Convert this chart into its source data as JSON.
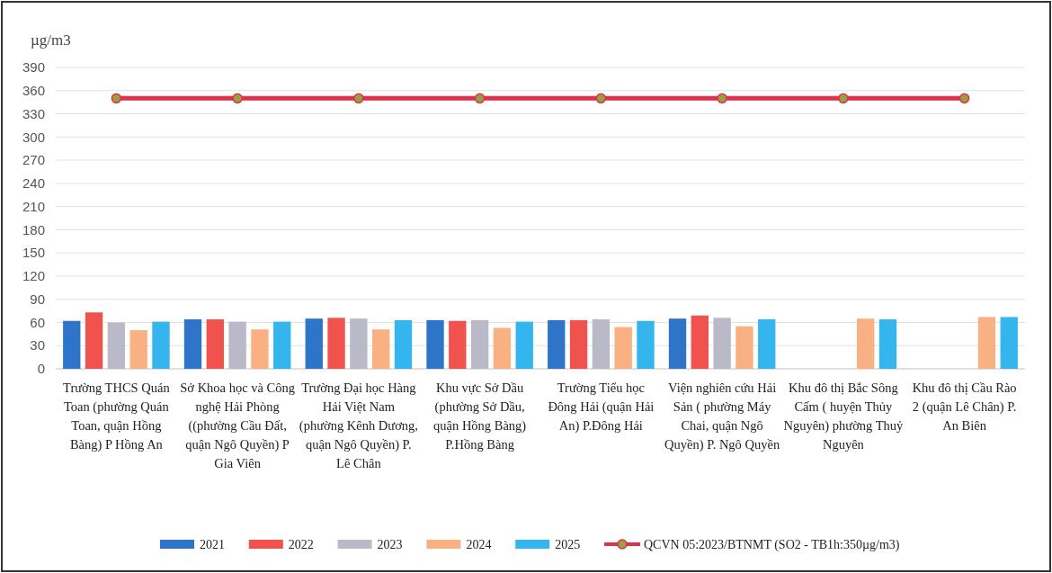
{
  "chart_data": {
    "type": "bar",
    "ylabel": "µg/m3",
    "categories": [
      "Trường THCS Quán Toan (phường Quán Toan, quận Hồng Bàng) P Hồng An",
      "Sở Khoa học và Công nghệ Hải Phòng ((phường Cầu Đất, quận Ngô Quyền) P Gia Viên",
      "Trường Đại học Hàng Hải Việt Nam (phường Kênh Dương, quận Ngô Quyền) P. Lê Chân",
      "Khu vực Sở Dầu (phường Sở Dầu, quận Hồng Bàng) P.Hồng Bàng",
      "Trường Tiểu học Đông Hải (quận Hải An) P.Đông Hải",
      "Viện nghiên cứu Hải Sản ( phường Máy Chai, quận Ngô Quyền) P. Ngô Quyền",
      "Khu đô thị Bắc Sông Cấm ( huyện Thủy Nguyên) phường Thuỷ Nguyên",
      "Khu đô thị Cầu Rào 2 (quận Lê Chân) P. An Biên"
    ],
    "series": [
      {
        "name": "2021",
        "color": "#2e75c9",
        "values": [
          62,
          64,
          65,
          63,
          63,
          65,
          null,
          null
        ]
      },
      {
        "name": "2022",
        "color": "#f0524d",
        "values": [
          73,
          64,
          66,
          62,
          63,
          69,
          null,
          null
        ]
      },
      {
        "name": "2023",
        "color": "#b9b9c7",
        "values": [
          60,
          61,
          65,
          63,
          64,
          66,
          null,
          null
        ]
      },
      {
        "name": "2024",
        "color": "#f9b183",
        "values": [
          50,
          51,
          51,
          53,
          54,
          55,
          65,
          67
        ]
      },
      {
        "name": "2025",
        "color": "#35b5ee",
        "values": [
          61,
          61,
          63,
          61,
          62,
          64,
          64,
          67
        ]
      },
      {
        "name": "QCVN 05:2023/BTNMT (SO2 - TB1h:350µg/m3)",
        "type": "line",
        "color": "#e0304a",
        "marker": "circle",
        "values": [
          350,
          350,
          350,
          350,
          350,
          350,
          350,
          350
        ]
      }
    ],
    "ylim": [
      0,
      390
    ],
    "yticks": [
      0,
      30,
      60,
      90,
      120,
      150,
      180,
      210,
      240,
      270,
      300,
      330,
      360,
      390
    ],
    "grid": "y",
    "legend": "bottom"
  }
}
